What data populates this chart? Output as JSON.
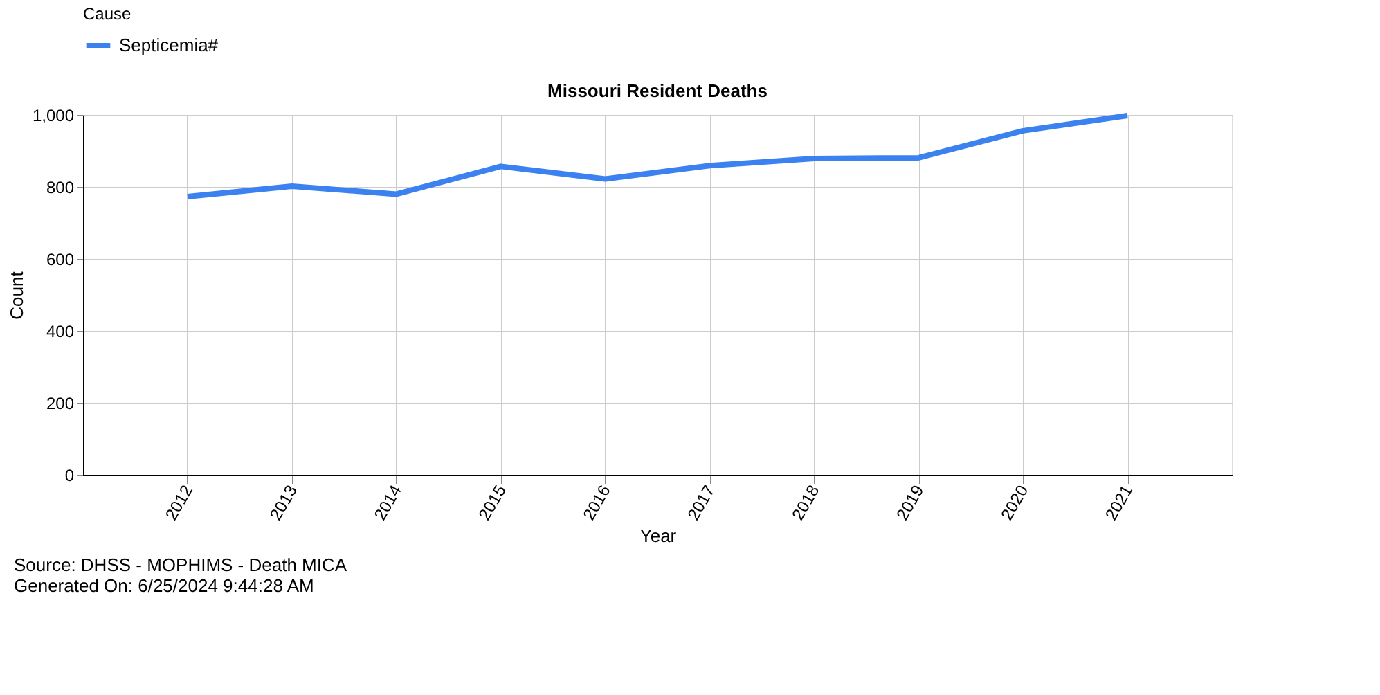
{
  "chart_data": {
    "type": "line",
    "title": "Missouri Resident Deaths",
    "xlabel": "Year",
    "ylabel": "Count",
    "legend_title": "Cause",
    "categories": [
      "2012",
      "2013",
      "2014",
      "2015",
      "2016",
      "2017",
      "2018",
      "2019",
      "2020",
      "2021"
    ],
    "series": [
      {
        "name": "Septicemia#",
        "color": "#3b82f0",
        "values": [
          773,
          802,
          780,
          857,
          822,
          859,
          879,
          881,
          956,
          998
        ]
      }
    ],
    "ylim": [
      0,
      1000
    ],
    "yticks": [
      0,
      200,
      400,
      600,
      800,
      {
        "value": 1000,
        "label": "1,000"
      }
    ],
    "grid": true,
    "legend": "top left",
    "marker": "none",
    "line_style": "solid",
    "annotations": [
      "Source: DHSS - MOPHIMS - Death MICA",
      "Generated On: 6/25/2024 9:44:28 AM"
    ]
  }
}
